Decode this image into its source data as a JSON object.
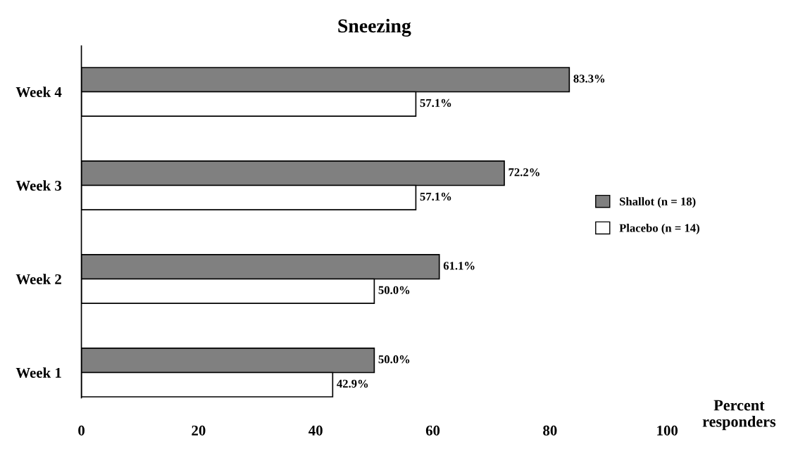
{
  "chart_data": {
    "type": "bar",
    "orientation": "horizontal",
    "title": "Sneezing",
    "xlabel": "Percent\nresponders",
    "categories": [
      "Week 4",
      "Week 3",
      "Week 2",
      "Week 1"
    ],
    "series": [
      {
        "name": "Shallot (n = 18)",
        "color": "#808080",
        "values": [
          83.3,
          72.2,
          61.1,
          50.0
        ],
        "value_labels": [
          "83.3%",
          "72.2%",
          "61.1%",
          "50.0%"
        ]
      },
      {
        "name": "Placebo (n = 14)",
        "color": "#ffffff",
        "values": [
          57.1,
          57.1,
          50.0,
          42.9
        ],
        "value_labels": [
          "57.1%",
          "57.1%",
          "50.0%",
          "42.9%"
        ]
      }
    ],
    "xlim": [
      0,
      100
    ],
    "xticks": [
      0,
      20,
      40,
      60,
      80,
      100
    ],
    "legend": "right",
    "grid": false
  }
}
